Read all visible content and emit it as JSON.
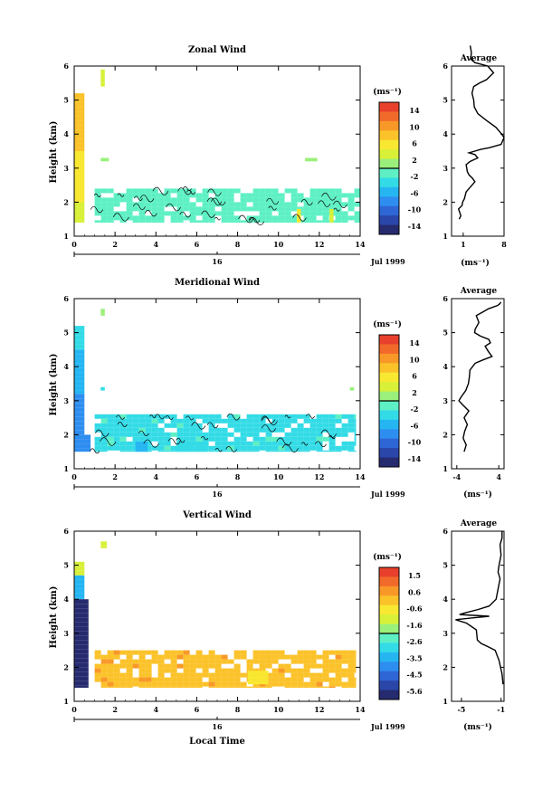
{
  "figure": {
    "xlabel": "Local Time",
    "date_label": "Jul 1999",
    "day_label": "16",
    "unit_label": "(ms⁻¹)",
    "colors": {
      "scale": [
        "#262a6e",
        "#2a46a8",
        "#2f66d6",
        "#2e8ef0",
        "#25b6f2",
        "#33dbe6",
        "#5ef0c4",
        "#9af07a",
        "#d8f038",
        "#f8e832",
        "#fbc22a",
        "#f89828",
        "#f26a2a",
        "#e8402c"
      ],
      "contour": "#000000",
      "axis": "#000000"
    }
  },
  "chart_data": [
    {
      "type": "heatmap",
      "title": "Zonal Wind",
      "xlabel": "",
      "ylabel": "Height (km)",
      "x_ticks": [
        "0",
        "2",
        "4",
        "6",
        "8",
        "10",
        "12",
        "14"
      ],
      "y_ticks": [
        "1",
        "2",
        "3",
        "4",
        "5",
        "6"
      ],
      "xlim": [
        0,
        14
      ],
      "ylim": [
        1,
        6
      ],
      "colorbar": {
        "label": "(ms⁻¹)",
        "ticks": [
          "14",
          "10",
          "6",
          "2",
          "-2",
          "-6",
          "-10",
          "-14"
        ],
        "range": [
          -16,
          16
        ]
      },
      "approx_field": [
        {
          "x": [
            0.0,
            0.5
          ],
          "y": [
            3.5,
            5.2
          ],
          "value": 8
        },
        {
          "x": [
            0.0,
            0.5
          ],
          "y": [
            2.0,
            3.5
          ],
          "value": 5
        },
        {
          "x": [
            0.0,
            0.5
          ],
          "y": [
            1.4,
            2.0
          ],
          "value": 3
        },
        {
          "x": [
            1.3,
            1.5
          ],
          "y": [
            5.4,
            5.9
          ],
          "value": 3
        },
        {
          "x": [
            1.3,
            1.7
          ],
          "y": [
            3.2,
            3.3
          ],
          "value": 1
        },
        {
          "x": [
            1.0,
            14.0
          ],
          "y": [
            1.4,
            2.4
          ],
          "value": -1
        },
        {
          "x": [
            10.9,
            11.1
          ],
          "y": [
            1.4,
            1.8
          ],
          "value": 5
        },
        {
          "x": [
            12.5,
            12.7
          ],
          "y": [
            1.4,
            1.8
          ],
          "value": 4
        },
        {
          "x": [
            11.3,
            11.9
          ],
          "y": [
            3.2,
            3.3
          ],
          "value": 1
        }
      ],
      "average_profile": {
        "title": "Average",
        "xlabel": "(ms⁻¹)",
        "x_ticks": [
          "1",
          "8"
        ],
        "xlim": [
          -1,
          8
        ],
        "y_ticks": [
          "1",
          "2",
          "3",
          "4",
          "5",
          "6"
        ],
        "ylim": [
          1,
          6
        ],
        "x": [
          0.3,
          0.6,
          0.2,
          0.8,
          0.9,
          1.2,
          1.5,
          2.5,
          3.0,
          2.6,
          2.0,
          1.7,
          1.6,
          1.5,
          2.2,
          3.5,
          3.0,
          2.0,
          3.0,
          4.0,
          5.5,
          7.5,
          8.0,
          7.6,
          6.6,
          5.0,
          3.5,
          2.9,
          2.8,
          2.5,
          2.8,
          3.8,
          5.0,
          6.2,
          5.2,
          3.0,
          2.3,
          2.4,
          2.2
        ],
        "y": [
          1.5,
          1.6,
          1.8,
          1.9,
          2.0,
          2.1,
          2.3,
          2.5,
          2.6,
          2.7,
          2.8,
          2.9,
          3.0,
          3.1,
          3.2,
          3.3,
          3.4,
          3.45,
          3.5,
          3.55,
          3.6,
          3.7,
          3.9,
          4.0,
          4.2,
          4.4,
          4.6,
          4.8,
          5.0,
          5.2,
          5.4,
          5.5,
          5.6,
          5.8,
          6.0,
          6.1,
          6.2,
          6.4,
          6.6
        ]
      }
    },
    {
      "type": "heatmap",
      "title": "Meridional Wind",
      "xlabel": "",
      "ylabel": "Height (km)",
      "x_ticks": [
        "0",
        "2",
        "4",
        "6",
        "8",
        "10",
        "12",
        "14"
      ],
      "y_ticks": [
        "1",
        "2",
        "3",
        "4",
        "5",
        "6"
      ],
      "xlim": [
        0,
        14
      ],
      "ylim": [
        1,
        6
      ],
      "colorbar": {
        "label": "(ms⁻¹)",
        "ticks": [
          "14",
          "10",
          "6",
          "2",
          "-2",
          "-6",
          "-10",
          "-14"
        ],
        "range": [
          -16,
          16
        ]
      },
      "approx_field": [
        {
          "x": [
            0.0,
            0.5
          ],
          "y": [
            4.5,
            5.2
          ],
          "value": -3
        },
        {
          "x": [
            0.0,
            0.5
          ],
          "y": [
            3.2,
            4.5
          ],
          "value": -6
        },
        {
          "x": [
            0.0,
            0.5
          ],
          "y": [
            2.0,
            3.2
          ],
          "value": -9
        },
        {
          "x": [
            0.0,
            0.8
          ],
          "y": [
            1.5,
            2.0
          ],
          "value": -8
        },
        {
          "x": [
            1.3,
            1.5
          ],
          "y": [
            5.5,
            5.7
          ],
          "value": 2
        },
        {
          "x": [
            1.3,
            1.5
          ],
          "y": [
            3.3,
            3.4
          ],
          "value": -3
        },
        {
          "x": [
            1.0,
            13.8
          ],
          "y": [
            1.5,
            2.6
          ],
          "value": -3
        },
        {
          "x": [
            3.0,
            3.6
          ],
          "y": [
            1.5,
            1.8
          ],
          "value": -6
        },
        {
          "x": [
            5.0,
            6.5
          ],
          "y": [
            1.5,
            1.8
          ],
          "value": -4
        },
        {
          "x": [
            13.5,
            13.7
          ],
          "y": [
            3.3,
            3.4
          ],
          "value": 1
        }
      ],
      "average_profile": {
        "title": "Average",
        "xlabel": "(ms⁻¹)",
        "x_ticks": [
          "-4",
          "4"
        ],
        "xlim": [
          -5,
          5
        ],
        "y_ticks": [
          "1",
          "2",
          "3",
          "4",
          "5",
          "6"
        ],
        "ylim": [
          1,
          6
        ],
        "x": [
          -2.6,
          -2.2,
          -2.8,
          -2.5,
          -2.0,
          -2.6,
          -1.7,
          -3.0,
          -3.6,
          -3.2,
          -2.3,
          -1.8,
          -1.6,
          -1.5,
          -0.5,
          1.0,
          2.7,
          2.0,
          1.4,
          2.4,
          2.1,
          0.5,
          -0.6,
          -0.5,
          0.2,
          -0.3,
          0.9,
          2.0,
          3.8,
          4.2,
          4.4
        ],
        "y": [
          1.5,
          1.7,
          1.9,
          2.1,
          2.3,
          2.5,
          2.7,
          2.9,
          3.0,
          3.1,
          3.3,
          3.5,
          3.7,
          3.9,
          4.1,
          4.2,
          4.3,
          4.45,
          4.6,
          4.7,
          4.8,
          4.9,
          5.0,
          5.1,
          5.3,
          5.5,
          5.6,
          5.7,
          5.8,
          5.85,
          5.9
        ]
      }
    },
    {
      "type": "heatmap",
      "title": "Vertical Wind",
      "xlabel": "Local Time",
      "ylabel": "Height (km)",
      "x_ticks": [
        "0",
        "2",
        "4",
        "6",
        "8",
        "10",
        "12",
        "14"
      ],
      "y_ticks": [
        "1",
        "2",
        "3",
        "4",
        "5",
        "6"
      ],
      "xlim": [
        0,
        14
      ],
      "ylim": [
        1,
        6
      ],
      "colorbar": {
        "label": "(ms⁻¹)",
        "ticks": [
          "1.5",
          "0.6",
          "-0.6",
          "-1.6",
          "-2.6",
          "-3.5",
          "-4.5",
          "-5.6"
        ],
        "range": [
          -6.5,
          2.0
        ]
      },
      "approx_field": [
        {
          "x": [
            0.0,
            0.5
          ],
          "y": [
            4.7,
            5.1
          ],
          "value": -1.3
        },
        {
          "x": [
            0.0,
            0.5
          ],
          "y": [
            4.0,
            4.7
          ],
          "value": -3.8
        },
        {
          "x": [
            0.0,
            0.7
          ],
          "y": [
            1.4,
            4.0
          ],
          "value": -6.0
        },
        {
          "x": [
            1.3,
            1.6
          ],
          "y": [
            5.5,
            5.7
          ],
          "value": -1.2
        },
        {
          "x": [
            1.0,
            13.8
          ],
          "y": [
            1.4,
            2.5
          ],
          "value": 0.0
        },
        {
          "x": [
            8.5,
            9.5
          ],
          "y": [
            1.5,
            1.9
          ],
          "value": -0.7
        }
      ],
      "average_profile": {
        "title": "Average",
        "xlabel": "(ms⁻¹)",
        "x_ticks": [
          "-5",
          "-1"
        ],
        "xlim": [
          -6,
          -0.7
        ],
        "y_ticks": [
          "1",
          "2",
          "3",
          "4",
          "5",
          "6"
        ],
        "ylim": [
          1,
          6
        ],
        "x": [
          -0.8,
          -0.9,
          -1.2,
          -1.6,
          -2.3,
          -3.0,
          -3.4,
          -3.5,
          -4.5,
          -5.6,
          -4.0,
          -2.2,
          -5.2,
          -4.6,
          -3.3,
          -2.2,
          -1.5,
          -1.3,
          -1.1,
          -1.3,
          -1.2,
          -1.0,
          -1.1,
          -0.9,
          -0.9
        ],
        "y": [
          1.5,
          1.8,
          2.2,
          2.5,
          2.6,
          2.7,
          2.8,
          3.1,
          3.3,
          3.4,
          3.45,
          3.5,
          3.55,
          3.6,
          3.7,
          3.8,
          4.0,
          4.3,
          4.6,
          4.8,
          5.0,
          5.3,
          5.6,
          5.8,
          6.0
        ]
      }
    }
  ]
}
